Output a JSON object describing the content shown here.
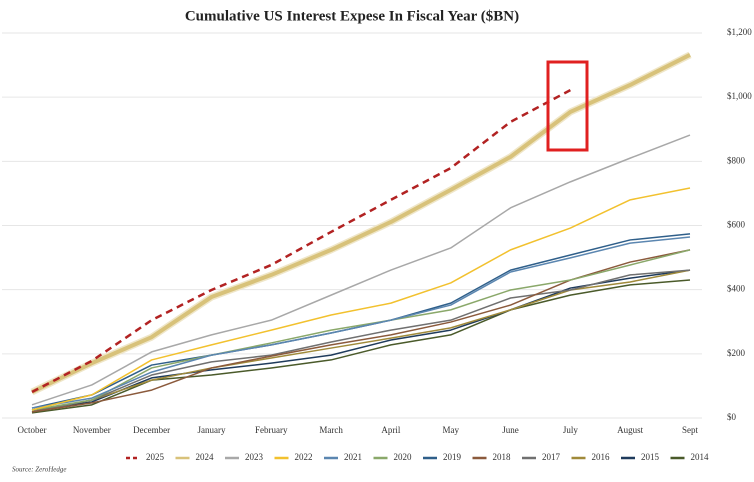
{
  "chart_data": {
    "type": "line",
    "title": "Cumulative US Interest Expese In Fiscal Year ($BN)",
    "source": "Source: ZeroHedge",
    "categories": [
      "October",
      "November",
      "December",
      "January",
      "February",
      "March",
      "April",
      "May",
      "June",
      "July",
      "August",
      "Sept"
    ],
    "ylim": [
      0,
      1200
    ],
    "yticks": [
      {
        "value": 0,
        "label": "$0"
      },
      {
        "value": 200,
        "label": "$200"
      },
      {
        "value": 400,
        "label": "$400"
      },
      {
        "value": 600,
        "label": "$600"
      },
      {
        "value": 800,
        "label": "$800"
      },
      {
        "value": 1000,
        "label": "$1,000"
      },
      {
        "value": 1200,
        "label": "$1,200"
      }
    ],
    "grid": true,
    "y_axis_side": "right",
    "series": [
      {
        "name": "2025",
        "color": "#b22222",
        "dash": "dashed",
        "width": 2.5,
        "values": [
          81,
          178,
          305,
          399,
          477,
          580,
          680,
          779,
          923,
          1022,
          null,
          null
        ]
      },
      {
        "name": "2024",
        "color": "#d8c27a",
        "width": 4,
        "values": [
          81,
          171,
          252,
          377,
          446,
          524,
          611,
          711,
          814,
          954,
          1038,
          1132
        ]
      },
      {
        "name": "2023",
        "color": "#a8a8a8",
        "width": 1.5,
        "values": [
          41,
          103,
          206,
          259,
          305,
          383,
          461,
          530,
          655,
          736,
          810,
          882
        ]
      },
      {
        "name": "2022",
        "color": "#f2c12e",
        "width": 1.5,
        "values": [
          25,
          72,
          181,
          228,
          274,
          321,
          358,
          421,
          524,
          592,
          680,
          717
        ]
      },
      {
        "name": "2021",
        "color": "#5b86b0",
        "width": 1.5,
        "values": [
          31,
          62,
          143,
          196,
          228,
          265,
          305,
          352,
          455,
          499,
          545,
          564
        ]
      },
      {
        "name": "2020",
        "color": "#8aa86a",
        "width": 1.5,
        "values": [
          25,
          56,
          156,
          196,
          234,
          274,
          305,
          337,
          399,
          430,
          477,
          524
        ]
      },
      {
        "name": "2019",
        "color": "#2f5f8a",
        "width": 1.5,
        "values": [
          31,
          72,
          165,
          196,
          228,
          265,
          305,
          358,
          461,
          508,
          555,
          574
        ]
      },
      {
        "name": "2018",
        "color": "#8b5a3c",
        "width": 1.5,
        "values": [
          19,
          47,
          87,
          156,
          193,
          228,
          259,
          299,
          352,
          430,
          486,
          524
        ]
      },
      {
        "name": "2017",
        "color": "#707070",
        "width": 1.5,
        "values": [
          19,
          56,
          134,
          175,
          196,
          237,
          274,
          305,
          374,
          399,
          446,
          461
        ]
      },
      {
        "name": "2016",
        "color": "#a08a3a",
        "width": 1.5,
        "values": [
          19,
          56,
          118,
          156,
          187,
          218,
          249,
          281,
          337,
          399,
          424,
          461
        ]
      },
      {
        "name": "2015",
        "color": "#1f3b5c",
        "width": 1.5,
        "values": [
          25,
          50,
          125,
          150,
          171,
          196,
          243,
          274,
          337,
          405,
          436,
          461
        ]
      },
      {
        "name": "2014",
        "color": "#4a5a2a",
        "width": 1.5,
        "values": [
          16,
          41,
          118,
          134,
          156,
          181,
          228,
          259,
          337,
          383,
          415,
          430
        ]
      }
    ]
  }
}
